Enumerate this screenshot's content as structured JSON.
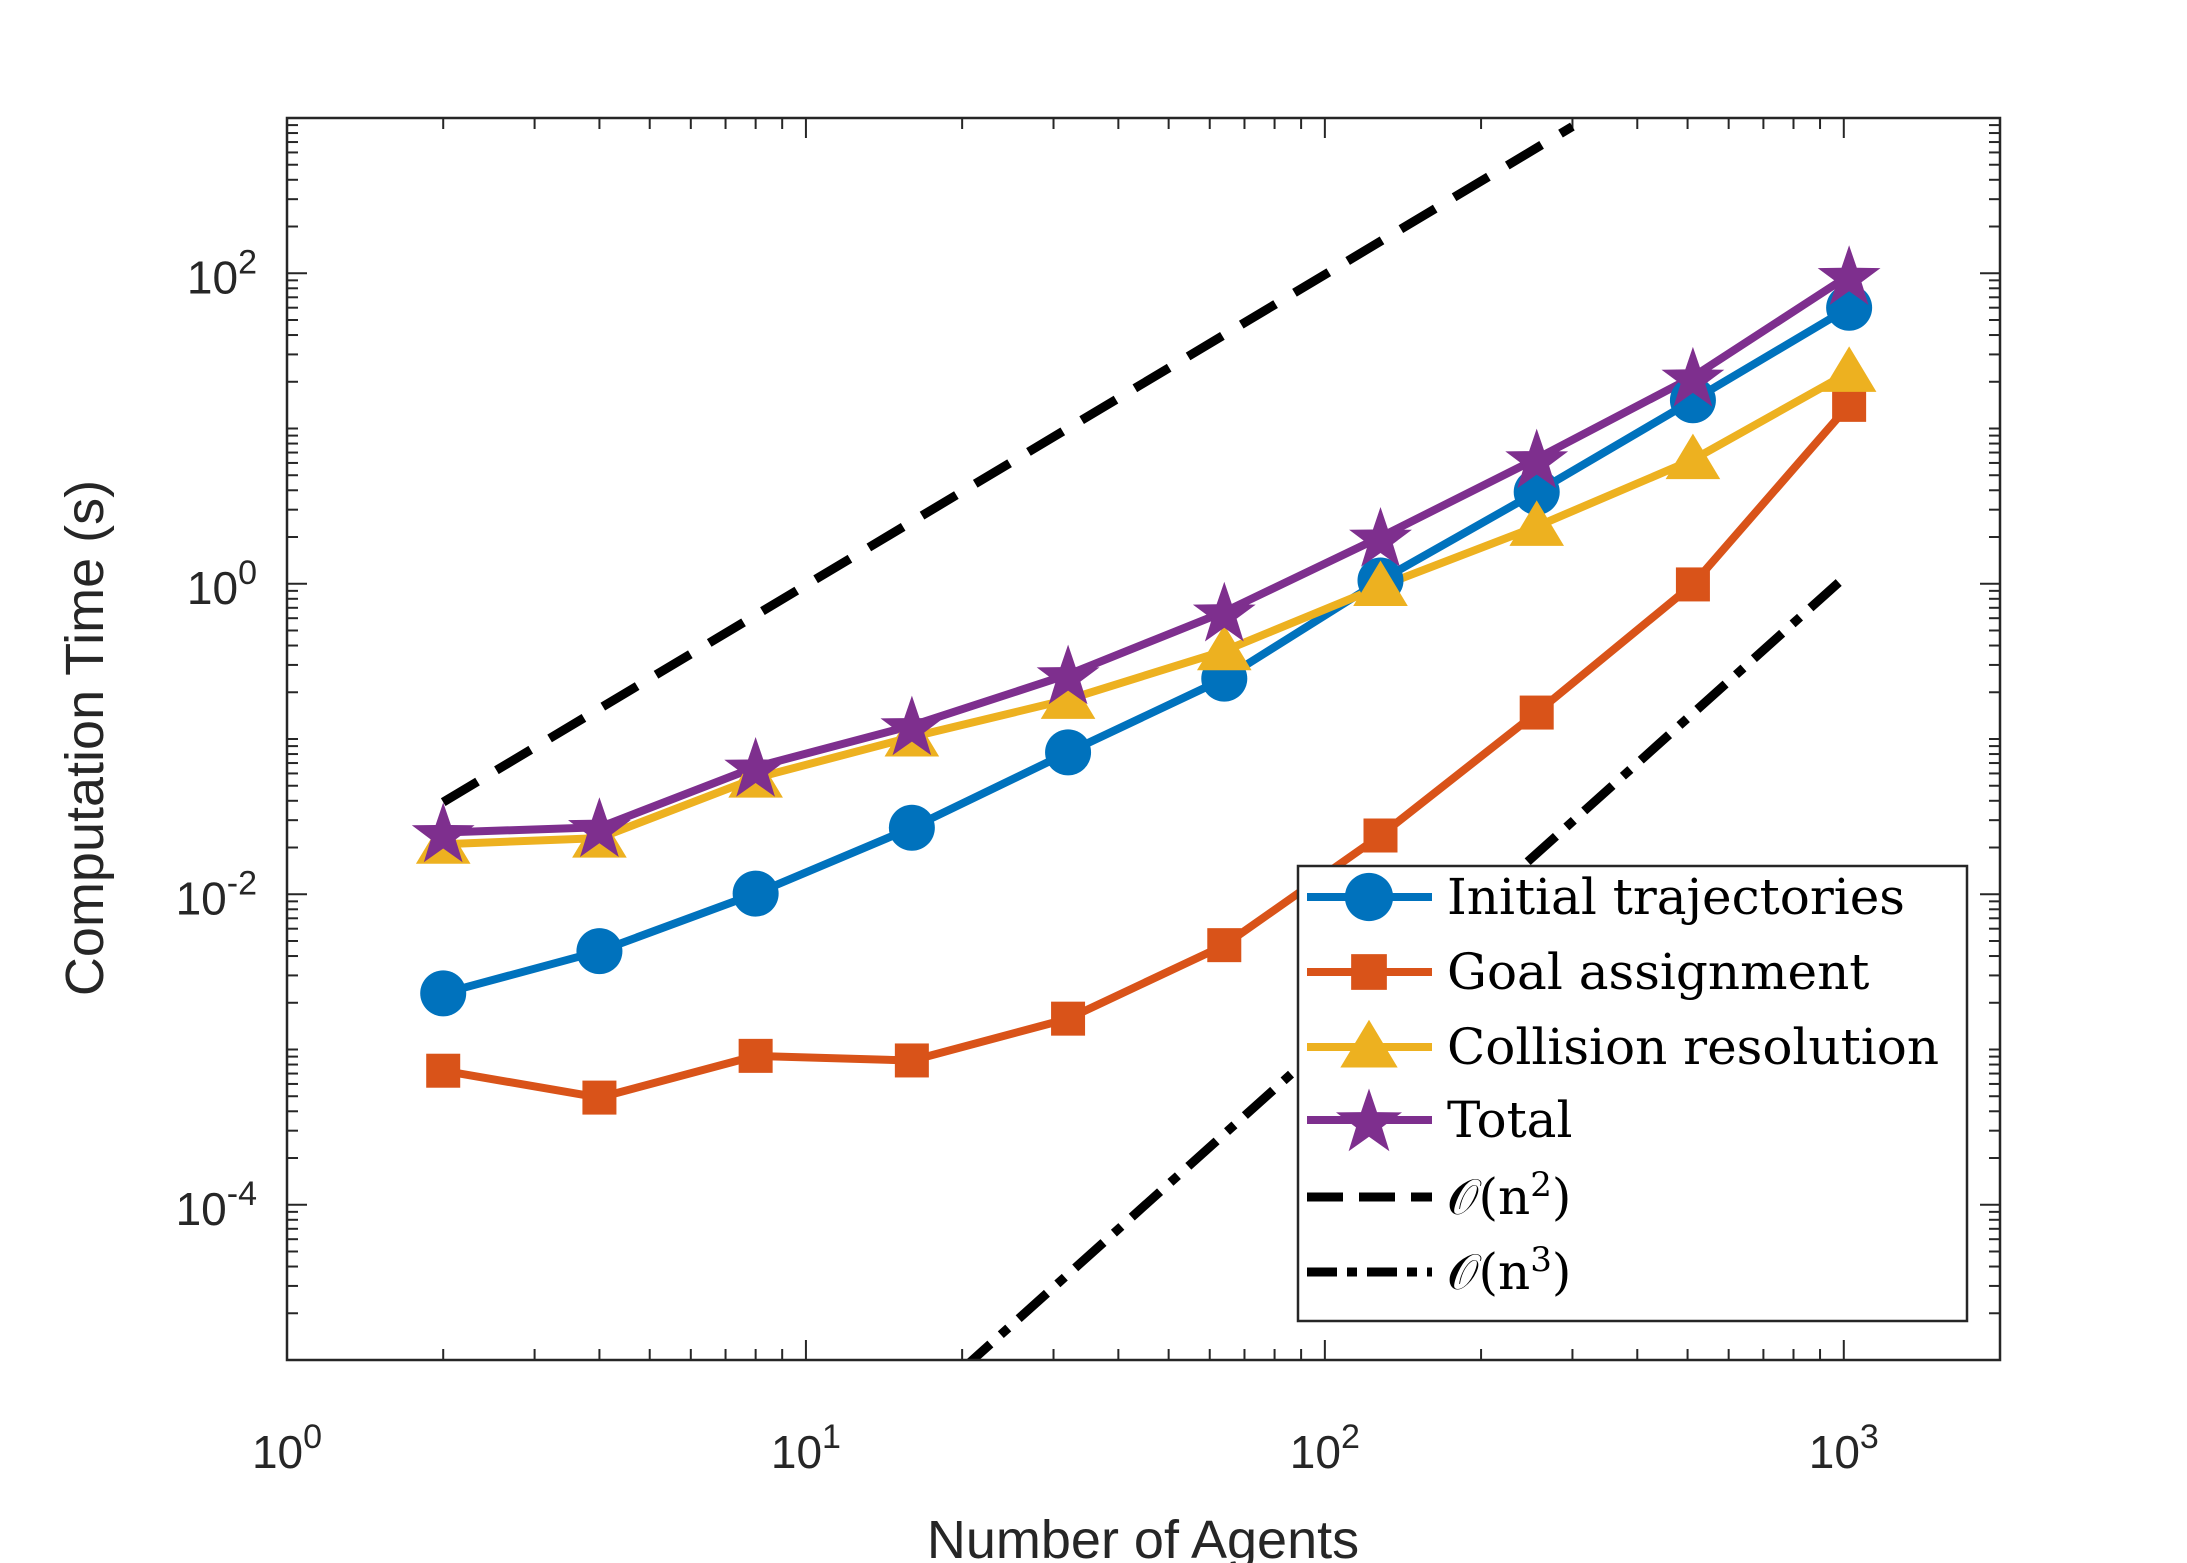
{
  "chart_data": {
    "type": "line",
    "title": "",
    "xlabel": "Number of Agents",
    "ylabel": "Computation Time (s)",
    "xscale": "log",
    "yscale": "log",
    "xlim": [
      1,
      2000
    ],
    "ylim": [
      1e-05,
      1000
    ],
    "xticks": [
      {
        "value": 1,
        "base": "10",
        "exp": "0"
      },
      {
        "value": 10,
        "base": "10",
        "exp": "1"
      },
      {
        "value": 100,
        "base": "10",
        "exp": "2"
      },
      {
        "value": 1000,
        "base": "10",
        "exp": "3"
      }
    ],
    "yticks": [
      {
        "value": 0.0001,
        "base": "10",
        "exp": "-4"
      },
      {
        "value": 0.01,
        "base": "10",
        "exp": "-2"
      },
      {
        "value": 1,
        "base": "10",
        "exp": "0"
      },
      {
        "value": 100,
        "base": "10",
        "exp": "2"
      }
    ],
    "grid": false,
    "legend_position": "bottom-right",
    "x": [
      2,
      4,
      8,
      16,
      32,
      64,
      128,
      256,
      512,
      1024
    ],
    "series": [
      {
        "name": "Initial trajectories",
        "color": "#0072BD",
        "marker": "circle",
        "style": "solid",
        "values": [
          0.0023,
          0.0043,
          0.0101,
          0.0268,
          0.082,
          0.245,
          1.05,
          3.9,
          15.2,
          60.0
        ]
      },
      {
        "name": "Goal assignment",
        "color": "#D95319",
        "marker": "square",
        "style": "solid",
        "values": [
          0.00073,
          0.00049,
          0.00091,
          0.00085,
          0.00158,
          0.0047,
          0.0239,
          0.148,
          0.99,
          14.2
        ]
      },
      {
        "name": "Collision resolution",
        "color": "#EDB120",
        "marker": "triangle",
        "style": "solid",
        "values": [
          0.021,
          0.023,
          0.056,
          0.103,
          0.18,
          0.37,
          0.96,
          2.34,
          6.3,
          23.0
        ]
      },
      {
        "name": "Total",
        "color": "#7E2F8E",
        "marker": "star",
        "style": "solid",
        "values": [
          0.025,
          0.027,
          0.066,
          0.122,
          0.26,
          0.66,
          2.0,
          6.4,
          21.5,
          97.0
        ]
      },
      {
        "name": "O(n^2)",
        "label_base": "𝒪(n",
        "label_exp": "2",
        "label_close": ")",
        "color": "#000000",
        "marker": "none",
        "style": "dashed",
        "x": [
          2,
          300
        ],
        "values": [
          0.0392,
          882
        ]
      },
      {
        "name": "O(n^3)",
        "label_base": "𝒪(n",
        "label_exp": "3",
        "label_close": ")",
        "color": "#000000",
        "marker": "none",
        "style": "dashdot",
        "x": [
          20,
          1000
        ],
        "values": [
          8.7e-06,
          1.09
        ]
      }
    ]
  }
}
